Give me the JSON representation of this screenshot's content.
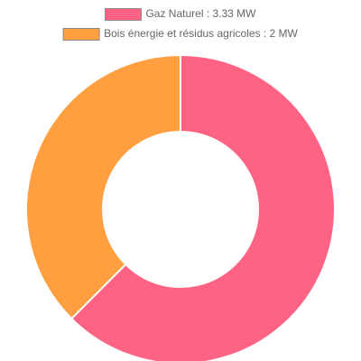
{
  "chart_data": {
    "type": "doughnut",
    "categories": [
      "Gaz Naturel : 3.33 MW",
      "Bois énergie et résidus agricoles : 2 MW"
    ],
    "values": [
      3.33,
      2
    ],
    "colors": [
      "#ff6384",
      "#ff9f40"
    ]
  }
}
